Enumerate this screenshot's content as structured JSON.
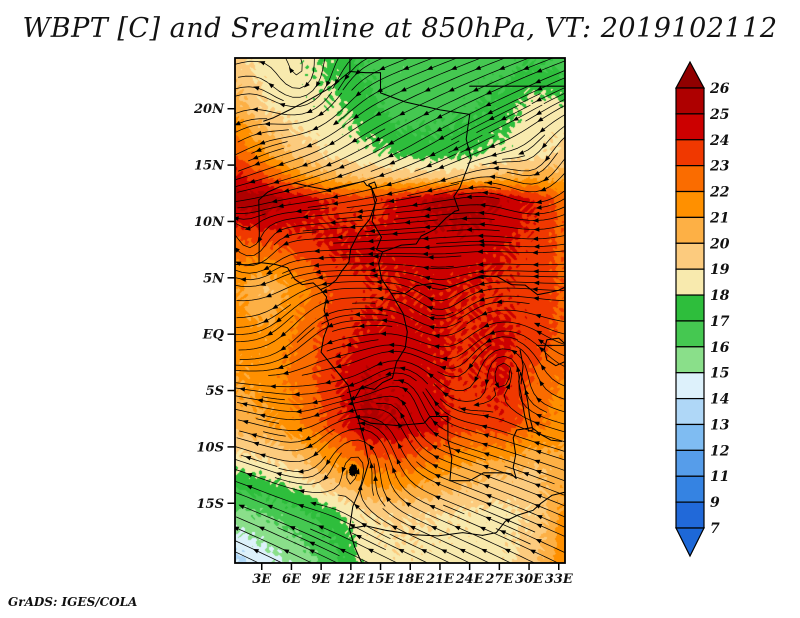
{
  "title": "WBPT [C] and Sreamline at 850hPa, VT: 2019102112",
  "credit": "GrADS: IGES/COLA",
  "chart_data": {
    "type": "heatmap",
    "subtype": "filled-contour shading with streamline overlay",
    "title": "WBPT [C] and Sreamline at 850hPa, VT: 2019102112",
    "variable": "WBPT [C]",
    "overlay": "Streamline at 850hPa",
    "valid_time": "2019102112",
    "domain": {
      "lon_min": 0.3,
      "lon_max": 33.63,
      "lat_min": -20.3,
      "lat_max": 24.5
    },
    "x_axis": {
      "ticks": [
        {
          "label": "3E",
          "lon": 3
        },
        {
          "label": "6E",
          "lon": 6
        },
        {
          "label": "9E",
          "lon": 9
        },
        {
          "label": "12E",
          "lon": 12
        },
        {
          "label": "15E",
          "lon": 15
        },
        {
          "label": "18E",
          "lon": 18
        },
        {
          "label": "21E",
          "lon": 21
        },
        {
          "label": "24E",
          "lon": 24
        },
        {
          "label": "27E",
          "lon": 27
        },
        {
          "label": "30E",
          "lon": 30
        },
        {
          "label": "33E",
          "lon": 33
        }
      ]
    },
    "y_axis": {
      "ticks": [
        {
          "label": "20N",
          "lat": 20
        },
        {
          "label": "15N",
          "lat": 15
        },
        {
          "label": "10N",
          "lat": 10
        },
        {
          "label": "5N",
          "lat": 5
        },
        {
          "label": "EQ",
          "lat": 0
        },
        {
          "label": "5S",
          "lat": -5
        },
        {
          "label": "10S",
          "lat": -10
        },
        {
          "label": "15S",
          "lat": -15
        }
      ]
    },
    "levels": [
      7,
      9,
      11,
      12,
      13,
      14,
      15,
      16,
      17,
      18,
      19,
      20,
      21,
      22,
      23,
      24,
      25,
      26
    ],
    "palette_low_to_high": [
      "#1D68D8",
      "#2169D9",
      "#3583E2",
      "#569DEA",
      "#7FBCF2",
      "#AFD7F7",
      "#DDF1FB",
      "#8ADF8A",
      "#45C851",
      "#2EBE3C",
      "#F8EAAE",
      "#FCCB7E",
      "#FDB045",
      "#FF9000",
      "#FA6C00",
      "#F03800",
      "#CC0000",
      "#AE0000",
      "#900000"
    ],
    "colorbar_labels_top_to_bottom": [
      "26",
      "25",
      "24",
      "23",
      "22",
      "21",
      "20",
      "19",
      "18",
      "17",
      "16",
      "15",
      "14",
      "13",
      "12",
      "11",
      "9",
      "7"
    ],
    "grid": {
      "lons": [
        0,
        3.4,
        6.8,
        10.2,
        13.6,
        17,
        20.4,
        23.8,
        27.2,
        30.6,
        34
      ],
      "lats": [
        24,
        20,
        16,
        14,
        12,
        10,
        8,
        4,
        0,
        -4,
        -8,
        -12,
        -16,
        -20
      ],
      "values": [
        [
          19.4,
          18.6,
          18.3,
          17.8,
          16.8,
          16.3,
          16.4,
          16.5,
          16.6,
          17.0,
          16.6
        ],
        [
          20.8,
          19.0,
          18.4,
          18.2,
          17.4,
          16.4,
          16.5,
          16.8,
          17.4,
          18.6,
          18.2
        ],
        [
          23.2,
          21.2,
          19.6,
          18.7,
          18.3,
          17.8,
          17.5,
          17.8,
          18.3,
          18.6,
          19.4
        ],
        [
          24.4,
          23.2,
          21.4,
          20.2,
          19.8,
          19.6,
          19.4,
          19.6,
          20.2,
          20.6,
          20.4
        ],
        [
          25.6,
          25.8,
          24.6,
          23.8,
          23.4,
          24.2,
          25.2,
          25.6,
          25.0,
          23.8,
          22.4
        ],
        [
          24.2,
          24.6,
          24.2,
          24.0,
          23.8,
          24.4,
          25.0,
          25.2,
          24.6,
          23.8,
          22.6
        ],
        [
          22.6,
          23.0,
          23.6,
          24.2,
          24.4,
          24.4,
          24.6,
          24.6,
          24.2,
          23.6,
          22.6
        ],
        [
          21.4,
          19.8,
          21.6,
          23.2,
          23.8,
          24.0,
          24.2,
          24.0,
          23.8,
          23.6,
          22.8
        ],
        [
          21.6,
          21.2,
          22.2,
          23.6,
          24.2,
          24.4,
          24.2,
          23.9,
          24.2,
          23.6,
          22.6
        ],
        [
          21.0,
          21.4,
          22.4,
          23.8,
          25.0,
          24.6,
          24.2,
          23.8,
          24.2,
          22.8,
          21.8
        ],
        [
          20.4,
          20.8,
          21.8,
          23.4,
          25.2,
          25.0,
          24.4,
          23.4,
          23.8,
          22.4,
          21.2
        ],
        [
          18.0,
          18.4,
          19.2,
          20.8,
          22.0,
          22.4,
          21.6,
          20.6,
          20.2,
          19.8,
          20.8
        ],
        [
          15.6,
          16.0,
          16.6,
          17.6,
          19.0,
          19.2,
          19.0,
          18.8,
          18.6,
          19.2,
          21.6
        ],
        [
          13.6,
          14.6,
          15.4,
          16.6,
          18.4,
          18.8,
          18.6,
          18.6,
          18.7,
          19.6,
          22.2
        ]
      ]
    },
    "flow": {
      "bg_lats": [
        -20,
        -12,
        -3,
        6,
        11,
        17,
        24
      ],
      "bg_u": [
        -1.3,
        -1.05,
        -0.7,
        -1.35,
        -1.6,
        -1.5,
        -1.45
      ],
      "bg_v": [
        0.55,
        0.32,
        0.05,
        0.0,
        -0.15,
        -0.75,
        -0.5
      ],
      "vortices": [
        [
          7.2,
          21.8,
          -2.6,
          2.6
        ],
        [
          1.8,
          7.2,
          -2.0,
          1.8
        ],
        [
          12.8,
          -10.2,
          2.0,
          2.8
        ],
        [
          17.0,
          -4.5,
          1.2,
          2.6
        ],
        [
          27.5,
          -2.0,
          1.5,
          2.6
        ],
        [
          21.0,
          2.0,
          -0.9,
          2.4
        ],
        [
          31.0,
          13.0,
          -1.3,
          2.8
        ]
      ],
      "jets": [
        [
          6.5,
          1.0,
          -0.3,
          -1.1,
          2.5
        ]
      ]
    },
    "geo": {
      "borders": [
        [
          [
            0,
            6.2
          ],
          [
            1.6,
            6.15
          ],
          [
            2.9,
            6.35
          ],
          [
            4.3,
            6.2
          ],
          [
            5.6,
            5.9
          ],
          [
            6.3,
            4.9
          ],
          [
            7.1,
            4.4
          ],
          [
            8.2,
            4.55
          ],
          [
            8.95,
            3.95
          ],
          [
            9.55,
            3.3
          ],
          [
            9.3,
            2.1
          ],
          [
            9.75,
            0.9
          ],
          [
            9.25,
            -0.3
          ],
          [
            9.0,
            -1.6
          ],
          [
            10.3,
            -3.0
          ],
          [
            11.7,
            -4.5
          ],
          [
            12.1,
            -5.9
          ],
          [
            12.7,
            -7.4
          ],
          [
            13.35,
            -9.4
          ],
          [
            13.8,
            -11.4
          ],
          [
            13.1,
            -13.4
          ],
          [
            12.2,
            -15.3
          ],
          [
            11.85,
            -17.3
          ],
          [
            12.4,
            -18.9
          ],
          [
            13.1,
            -20.3
          ]
        ],
        [
          [
            2.72,
            6.3
          ],
          [
            2.75,
            9.0
          ],
          [
            2.7,
            11.9
          ]
        ],
        [
          [
            2.7,
            11.9
          ],
          [
            3.6,
            12.6
          ],
          [
            4.9,
            13.1
          ],
          [
            6.4,
            13.4
          ],
          [
            7.8,
            13.1
          ],
          [
            9.6,
            12.8
          ],
          [
            11.4,
            13.2
          ],
          [
            13.3,
            13.55
          ],
          [
            13.6,
            13.2
          ],
          [
            14.05,
            13.08
          ]
        ],
        [
          [
            3.2,
            18.9
          ],
          [
            4.2,
            19.2
          ],
          [
            5.8,
            19.9
          ],
          [
            7.8,
            20.8
          ],
          [
            9.8,
            21.8
          ],
          [
            11.9,
            23.3
          ],
          [
            11.9,
            24.5
          ]
        ],
        [
          [
            11.9,
            23.3
          ],
          [
            13.5,
            23.2
          ],
          [
            15.0,
            23.2
          ],
          [
            15.0,
            21.4
          ],
          [
            17.5,
            20.6
          ],
          [
            21.0,
            19.9
          ],
          [
            24.0,
            19.5
          ]
        ],
        [
          [
            24.0,
            22.0
          ],
          [
            28.0,
            22.0
          ],
          [
            31.5,
            22.0
          ],
          [
            33.7,
            22.0
          ]
        ],
        [
          [
            24.0,
            19.5
          ],
          [
            23.65,
            17.3
          ],
          [
            24.15,
            15.6
          ],
          [
            23.0,
            13.0
          ],
          [
            22.4,
            12.2
          ],
          [
            22.9,
            11.0
          ],
          [
            22.5,
            10.9
          ]
        ],
        [
          [
            14.05,
            13.08
          ],
          [
            14.45,
            11.6
          ],
          [
            14.15,
            10.0
          ],
          [
            15.1,
            8.6
          ],
          [
            14.6,
            7.5
          ],
          [
            15.2,
            7.3
          ],
          [
            14.8,
            6.3
          ],
          [
            15.1,
            4.9
          ],
          [
            16.1,
            3.6
          ]
        ],
        [
          [
            22.5,
            10.9
          ],
          [
            21.6,
            10.3
          ],
          [
            20.5,
            9.3
          ],
          [
            19.1,
            8.7
          ],
          [
            18.6,
            8.0
          ],
          [
            17.1,
            7.9
          ],
          [
            16.2,
            7.6
          ],
          [
            15.2,
            7.3
          ]
        ],
        [
          [
            16.1,
            3.6
          ],
          [
            17.5,
            3.6
          ],
          [
            18.6,
            4.3
          ],
          [
            20.3,
            4.5
          ],
          [
            22.0,
            4.2
          ],
          [
            23.4,
            4.6
          ],
          [
            25.2,
            5.2
          ],
          [
            26.8,
            5.1
          ],
          [
            28.2,
            4.4
          ],
          [
            29.6,
            4.35
          ],
          [
            30.85,
            3.5
          ]
        ],
        [
          [
            30.85,
            3.5
          ],
          [
            32.0,
            3.7
          ],
          [
            33.0,
            3.9
          ],
          [
            33.7,
            4.2
          ]
        ],
        [
          [
            14.05,
            13.08
          ],
          [
            14.6,
            11.9
          ],
          [
            13.9,
            10.2
          ],
          [
            12.8,
            9.0
          ],
          [
            12.0,
            7.6
          ],
          [
            11.8,
            6.4
          ],
          [
            11.1,
            5.6
          ],
          [
            10.5,
            4.8
          ],
          [
            9.8,
            4.3
          ],
          [
            8.95,
            3.95
          ]
        ],
        [
          [
            16.1,
            3.6
          ],
          [
            17.3,
            1.8
          ],
          [
            17.7,
            0.2
          ],
          [
            17.5,
            -1.2
          ],
          [
            16.6,
            -2.5
          ],
          [
            16.2,
            -3.9
          ],
          [
            15.2,
            -4.3
          ],
          [
            14.4,
            -4.9
          ],
          [
            13.1,
            -4.65
          ],
          [
            12.4,
            -5.7
          ],
          [
            12.1,
            -5.9
          ]
        ],
        [
          [
            12.7,
            -7.4
          ],
          [
            14.0,
            -7.9
          ],
          [
            16.6,
            -8.1
          ],
          [
            18.0,
            -8.0
          ],
          [
            19.4,
            -7.9
          ],
          [
            20.0,
            -7.3
          ],
          [
            21.8,
            -7.3
          ],
          [
            21.8,
            -9.4
          ],
          [
            22.2,
            -11.0
          ],
          [
            22.0,
            -13.0
          ],
          [
            24.0,
            -13.0
          ]
        ],
        [
          [
            24.0,
            -13.0
          ],
          [
            25.4,
            -12.3
          ],
          [
            26.9,
            -12.3
          ],
          [
            27.6,
            -12.3
          ],
          [
            28.2,
            -12.4
          ],
          [
            28.7,
            -12.8
          ],
          [
            28.4,
            -11.8
          ],
          [
            28.65,
            -10.7
          ],
          [
            28.4,
            -9.2
          ],
          [
            28.75,
            -8.5
          ],
          [
            30.3,
            -8.3
          ]
        ],
        [
          [
            30.3,
            -8.3
          ],
          [
            31.2,
            -8.9
          ],
          [
            32.2,
            -9.4
          ],
          [
            33.3,
            -9.5
          ]
        ],
        [
          [
            25.3,
            -17.85
          ],
          [
            26.7,
            -17.6
          ],
          [
            27.6,
            -16.6
          ],
          [
            28.85,
            -16.05
          ],
          [
            30.4,
            -15.63
          ],
          [
            31.2,
            -15.0
          ],
          [
            32.3,
            -14.3
          ],
          [
            33.7,
            -14.0
          ]
        ],
        [
          [
            11.85,
            -17.25
          ],
          [
            13.5,
            -17.0
          ],
          [
            15.5,
            -17.4
          ],
          [
            18.5,
            -17.8
          ],
          [
            20.8,
            -17.9
          ],
          [
            23.3,
            -17.6
          ],
          [
            25.3,
            -17.85
          ]
        ],
        [
          [
            30.8,
            -1.0
          ],
          [
            31.8,
            -1.0
          ],
          [
            33.7,
            -1.0
          ]
        ],
        [
          [
            29.1,
            -1.4
          ],
          [
            29.4,
            -2.8
          ],
          [
            29.2,
            -4.4
          ]
        ]
      ],
      "lakes": [
        [
          [
            31.8,
            -0.5
          ],
          [
            33.0,
            -0.35
          ],
          [
            33.8,
            -1.0
          ],
          [
            33.7,
            -2.4
          ],
          [
            32.7,
            -2.8
          ],
          [
            31.8,
            -2.3
          ],
          [
            31.55,
            -1.3
          ],
          [
            31.8,
            -0.5
          ]
        ],
        [
          [
            29.15,
            -3.4
          ],
          [
            29.55,
            -4.6
          ],
          [
            29.85,
            -5.9
          ],
          [
            30.05,
            -7.3
          ],
          [
            30.4,
            -8.5
          ],
          [
            29.95,
            -8.6
          ],
          [
            29.55,
            -7.2
          ],
          [
            29.25,
            -5.6
          ],
          [
            28.95,
            -4.2
          ],
          [
            29.15,
            -3.4
          ]
        ],
        [
          [
            13.8,
            13.3
          ],
          [
            14.4,
            13.5
          ],
          [
            14.6,
            13.0
          ],
          [
            14.1,
            12.9
          ],
          [
            13.8,
            13.3
          ]
        ]
      ]
    }
  }
}
